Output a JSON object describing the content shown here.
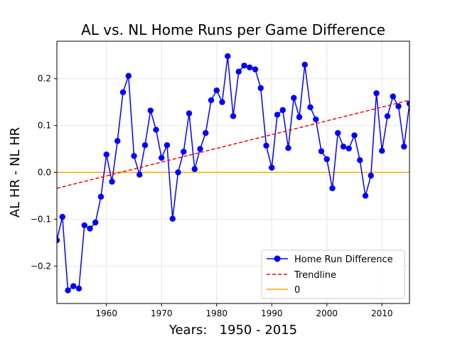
{
  "chart_data": {
    "type": "line",
    "title": "AL vs. NL Home Runs per Game Difference",
    "xlabel": "Years:   1950 - 2015",
    "ylabel": "AL HR - NL HR",
    "xlim": [
      1951,
      2015
    ],
    "ylim": [
      -0.28,
      0.28
    ],
    "xticks": [
      1960,
      1970,
      1980,
      1990,
      2000,
      2010
    ],
    "yticks": [
      -0.2,
      -0.1,
      0.0,
      0.1,
      0.2
    ],
    "ytick_labels": [
      "−0.2",
      "−0.1",
      "0.0",
      "0.1",
      "0.2"
    ],
    "grid": true,
    "legend_position": "lower-right",
    "series": [
      {
        "name": "Home Run Difference",
        "color": "#0000ff",
        "style": "line-with-circle-markers",
        "x": [
          1951,
          1952,
          1953,
          1954,
          1955,
          1956,
          1957,
          1958,
          1959,
          1960,
          1961,
          1962,
          1963,
          1964,
          1965,
          1966,
          1967,
          1968,
          1969,
          1970,
          1971,
          1972,
          1973,
          1974,
          1975,
          1976,
          1977,
          1978,
          1979,
          1980,
          1981,
          1982,
          1983,
          1984,
          1985,
          1986,
          1987,
          1988,
          1989,
          1990,
          1991,
          1992,
          1993,
          1994,
          1995,
          1996,
          1997,
          1998,
          1999,
          2000,
          2001,
          2002,
          2003,
          2004,
          2005,
          2006,
          2007,
          2008,
          2009,
          2010,
          2011,
          2012,
          2013,
          2014,
          2015
        ],
        "y": [
          -0.145,
          -0.095,
          -0.252,
          -0.243,
          -0.248,
          -0.113,
          -0.12,
          -0.107,
          -0.052,
          0.038,
          -0.02,
          0.067,
          0.171,
          0.206,
          0.035,
          -0.005,
          0.058,
          0.132,
          0.091,
          0.031,
          0.058,
          -0.099,
          0.0,
          0.044,
          0.126,
          0.007,
          0.05,
          0.084,
          0.154,
          0.175,
          0.15,
          0.248,
          0.12,
          0.215,
          0.228,
          0.224,
          0.22,
          0.18,
          0.057,
          0.01,
          0.123,
          0.133,
          0.052,
          0.159,
          0.118,
          0.23,
          0.139,
          0.113,
          0.045,
          0.028,
          -0.034,
          0.084,
          0.055,
          0.051,
          0.079,
          0.026,
          -0.05,
          -0.007,
          0.169,
          0.046,
          0.12,
          0.162,
          0.141,
          0.055,
          0.147
        ]
      },
      {
        "name": "Trendline",
        "color": "#ff0000",
        "style": "dashed",
        "x": [
          1951,
          2015
        ],
        "y": [
          -0.034,
          0.154
        ]
      },
      {
        "name": "0",
        "color": "#ffa500",
        "style": "solid",
        "x": [
          1951,
          2015
        ],
        "y": [
          0,
          0
        ]
      }
    ]
  }
}
